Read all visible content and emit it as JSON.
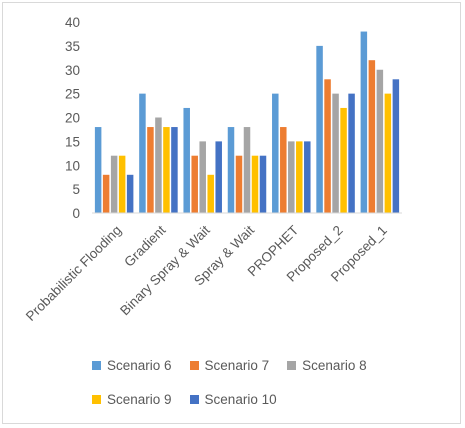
{
  "chart_data": {
    "type": "bar",
    "categories": [
      "Probabilistic Flooding",
      "Gradient",
      "Binary Spray & Wait",
      "Spray & Wait",
      "PROPHET",
      "Proposed_2",
      "Proposed_1"
    ],
    "series": [
      {
        "name": "Scenario 6",
        "color": "#5b9bd5",
        "values": [
          18,
          25,
          22,
          18,
          25,
          35,
          38
        ]
      },
      {
        "name": "Scenario 7",
        "color": "#ed7d31",
        "values": [
          8,
          18,
          12,
          12,
          18,
          28,
          32
        ]
      },
      {
        "name": "Scenario 8",
        "color": "#a5a5a5",
        "values": [
          12,
          20,
          15,
          18,
          15,
          25,
          30
        ]
      },
      {
        "name": "Scenario 9",
        "color": "#ffc000",
        "values": [
          12,
          18,
          8,
          12,
          15,
          22,
          25
        ]
      },
      {
        "name": "Scenario 10",
        "color": "#4472c4",
        "values": [
          8,
          18,
          15,
          12,
          15,
          25,
          28
        ]
      }
    ],
    "title": "",
    "xlabel": "",
    "ylabel": "",
    "ylim": [
      0,
      40
    ],
    "yticks": [
      "0",
      "5",
      "10",
      "15",
      "20",
      "25",
      "30",
      "35",
      "40"
    ],
    "grid": false,
    "legend_position": "bottom"
  }
}
